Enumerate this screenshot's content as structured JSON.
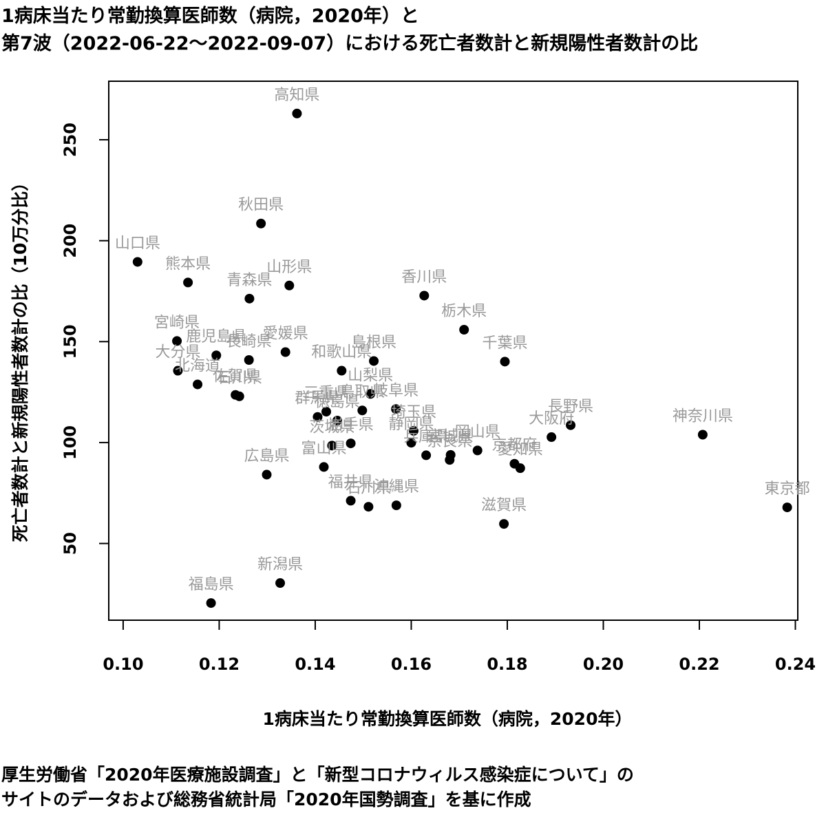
{
  "title": {
    "line1": "1病床当たり常勤換算医師数（病院，2020年）と",
    "line2": "第7波（2022-06-22〜2022-09-07）における死亡者数計と新規陽性者数計の比"
  },
  "note": {
    "line1": "厚生労働省「2020年医療施設調査」と「新型コロナウィルス感染症について」の",
    "line2": "サイトのデータおよび総務省統計局「2020年国勢調査」を基に作成"
  },
  "colors": {
    "point": "#000000",
    "label": "#999999",
    "axis": "#000000"
  },
  "chart_data": {
    "type": "scatter",
    "xlabel": "1病床当たり常勤換算医師数（病院，2020年）",
    "ylabel": "死亡者数計と新規陽性者数計の比（10万分比）",
    "xlim": [
      0.097,
      0.2405
    ],
    "ylim": [
      12,
      279
    ],
    "xticks": [
      "0.10",
      "0.12",
      "0.14",
      "0.16",
      "0.18",
      "0.20",
      "0.22",
      "0.24"
    ],
    "yticks": [
      "50",
      "100",
      "150",
      "200",
      "250"
    ],
    "grid": false,
    "points": [
      {
        "label": "高知県",
        "x": 0.1362,
        "y": 263
      },
      {
        "label": "秋田県",
        "x": 0.1287,
        "y": 208.5
      },
      {
        "label": "山口県",
        "x": 0.103,
        "y": 189.5
      },
      {
        "label": "熊本県",
        "x": 0.1135,
        "y": 179.3
      },
      {
        "label": "山形県",
        "x": 0.1346,
        "y": 177.8
      },
      {
        "label": "青森県",
        "x": 0.1263,
        "y": 171.3
      },
      {
        "label": "香川県",
        "x": 0.1627,
        "y": 172.8
      },
      {
        "label": "栃木県",
        "x": 0.171,
        "y": 155.9
      },
      {
        "label": "宮崎県",
        "x": 0.1112,
        "y": 150.3
      },
      {
        "label": "鹿児島県",
        "x": 0.1194,
        "y": 143.2
      },
      {
        "label": "愛媛県",
        "x": 0.1338,
        "y": 144.8
      },
      {
        "label": "長崎県",
        "x": 0.1262,
        "y": 140.9
      },
      {
        "label": "島根県",
        "x": 0.1522,
        "y": 140.4
      },
      {
        "label": "千葉県",
        "x": 0.1795,
        "y": 140.1
      },
      {
        "label": "大分県",
        "x": 0.1114,
        "y": 135.6
      },
      {
        "label": "和歌山県",
        "x": 0.1455,
        "y": 135.6
      },
      {
        "label": "北海道",
        "x": 0.1155,
        "y": 128.8
      },
      {
        "label": "山梨県",
        "x": 0.1515,
        "y": 124.1
      },
      {
        "label": "佐賀県",
        "x": 0.1234,
        "y": 123.6
      },
      {
        "label": "石川県",
        "x": 0.1242,
        "y": 122.9
      },
      {
        "label": "岐阜県",
        "x": 0.1568,
        "y": 116.6
      },
      {
        "label": "鳥取県",
        "x": 0.1498,
        "y": 115.9
      },
      {
        "label": "三重県",
        "x": 0.1423,
        "y": 115.3
      },
      {
        "label": "群馬県",
        "x": 0.1405,
        "y": 112.7
      },
      {
        "label": "徳島県",
        "x": 0.1446,
        "y": 110.9
      },
      {
        "label": "埼玉県",
        "x": 0.1605,
        "y": 105.8
      },
      {
        "label": "茨城県",
        "x": 0.1435,
        "y": 98.5
      },
      {
        "label": "岩手県",
        "x": 0.1474,
        "y": 99.6
      },
      {
        "label": "静岡県",
        "x": 0.16,
        "y": 99.9
      },
      {
        "label": "兵庫県",
        "x": 0.1631,
        "y": 93.7
      },
      {
        "label": "宮城県",
        "x": 0.1682,
        "y": 93.9
      },
      {
        "label": "奈良県",
        "x": 0.168,
        "y": 91.4
      },
      {
        "label": "岡山県",
        "x": 0.1738,
        "y": 96.1
      },
      {
        "label": "京都府",
        "x": 0.1815,
        "y": 89.5
      },
      {
        "label": "愛知県",
        "x": 0.1827,
        "y": 87.3
      },
      {
        "label": "大阪府",
        "x": 0.1892,
        "y": 102.7
      },
      {
        "label": "長野県",
        "x": 0.1932,
        "y": 108.6
      },
      {
        "label": "神奈川県",
        "x": 0.2207,
        "y": 103.9
      },
      {
        "label": "富山県",
        "x": 0.1418,
        "y": 87.9
      },
      {
        "label": "広島県",
        "x": 0.1299,
        "y": 84.1
      },
      {
        "label": "福井県",
        "x": 0.1474,
        "y": 71.2
      },
      {
        "label": "石川県",
        "x": 0.1511,
        "y": 68.2
      },
      {
        "label": "沖縄県",
        "x": 0.1569,
        "y": 68.9
      },
      {
        "label": "東京都",
        "x": 0.2383,
        "y": 67.9
      },
      {
        "label": "滋賀県",
        "x": 0.1793,
        "y": 59.7
      },
      {
        "label": "新潟県",
        "x": 0.1327,
        "y": 30.4
      },
      {
        "label": "福島県",
        "x": 0.1183,
        "y": 20.5
      }
    ]
  }
}
